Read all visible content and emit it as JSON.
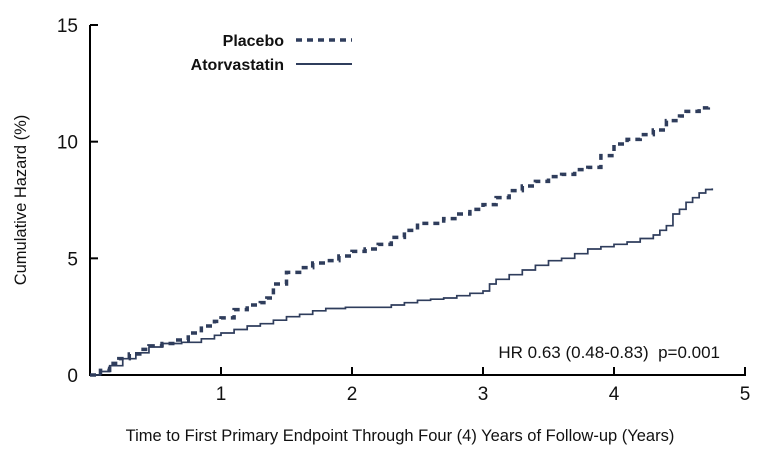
{
  "chart_data": {
    "type": "line",
    "title": "",
    "xlabel": "Time to First Primary Endpoint Through Four (4) Years of Follow-up (Years)",
    "ylabel": "Cumulative Hazard (%)",
    "annotation": "HR 0.63 (0.48-0.83)  p=0.001",
    "xlim": [
      0,
      5
    ],
    "ylim": [
      0,
      15
    ],
    "xticks": [
      1,
      2,
      3,
      4,
      5
    ],
    "yticks": [
      0,
      5,
      10,
      15
    ],
    "grid": false,
    "legend_position": "top-left-inside",
    "axis_color": "#000000",
    "line_interpolation": "step-after",
    "series": [
      {
        "name": "Placebo",
        "style": "dashed",
        "color": "#2f3d5c",
        "width": 3.5,
        "dash": "6,5",
        "points": [
          [
            0,
            0
          ],
          [
            0.08,
            0.2
          ],
          [
            0.15,
            0.5
          ],
          [
            0.22,
            0.7
          ],
          [
            0.3,
            0.9
          ],
          [
            0.38,
            1.1
          ],
          [
            0.45,
            1.25
          ],
          [
            0.55,
            1.35
          ],
          [
            0.65,
            1.5
          ],
          [
            0.75,
            1.8
          ],
          [
            0.85,
            2.1
          ],
          [
            0.95,
            2.3
          ],
          [
            1.0,
            2.45
          ],
          [
            1.1,
            2.8
          ],
          [
            1.2,
            3.0
          ],
          [
            1.3,
            3.1
          ],
          [
            1.35,
            3.3
          ],
          [
            1.4,
            3.9
          ],
          [
            1.5,
            4.4
          ],
          [
            1.6,
            4.6
          ],
          [
            1.7,
            4.8
          ],
          [
            1.8,
            4.9
          ],
          [
            1.9,
            5.1
          ],
          [
            2.0,
            5.3
          ],
          [
            2.1,
            5.4
          ],
          [
            2.2,
            5.6
          ],
          [
            2.3,
            5.9
          ],
          [
            2.4,
            6.2
          ],
          [
            2.5,
            6.5
          ],
          [
            2.6,
            6.5
          ],
          [
            2.7,
            6.7
          ],
          [
            2.8,
            6.9
          ],
          [
            2.9,
            7.1
          ],
          [
            3.0,
            7.3
          ],
          [
            3.1,
            7.6
          ],
          [
            3.2,
            7.9
          ],
          [
            3.3,
            8.1
          ],
          [
            3.4,
            8.3
          ],
          [
            3.5,
            8.5
          ],
          [
            3.6,
            8.6
          ],
          [
            3.7,
            8.8
          ],
          [
            3.8,
            8.9
          ],
          [
            3.9,
            9.4
          ],
          [
            4.0,
            9.9
          ],
          [
            4.1,
            10.1
          ],
          [
            4.2,
            10.3
          ],
          [
            4.3,
            10.5
          ],
          [
            4.4,
            10.9
          ],
          [
            4.5,
            11.1
          ],
          [
            4.55,
            11.3
          ],
          [
            4.65,
            11.45
          ],
          [
            4.72,
            11.5
          ]
        ]
      },
      {
        "name": "Atorvastatin",
        "style": "solid",
        "color": "#2f3d5c",
        "width": 1.7,
        "dash": "",
        "points": [
          [
            0,
            0
          ],
          [
            0.08,
            0.15
          ],
          [
            0.15,
            0.4
          ],
          [
            0.25,
            0.7
          ],
          [
            0.35,
            0.95
          ],
          [
            0.45,
            1.2
          ],
          [
            0.55,
            1.35
          ],
          [
            0.7,
            1.4
          ],
          [
            0.85,
            1.55
          ],
          [
            0.95,
            1.7
          ],
          [
            1.0,
            1.8
          ],
          [
            1.1,
            1.95
          ],
          [
            1.2,
            2.1
          ],
          [
            1.3,
            2.2
          ],
          [
            1.4,
            2.35
          ],
          [
            1.5,
            2.5
          ],
          [
            1.6,
            2.6
          ],
          [
            1.7,
            2.75
          ],
          [
            1.8,
            2.85
          ],
          [
            1.95,
            2.9
          ],
          [
            2.2,
            2.9
          ],
          [
            2.3,
            3.0
          ],
          [
            2.4,
            3.1
          ],
          [
            2.5,
            3.2
          ],
          [
            2.6,
            3.25
          ],
          [
            2.7,
            3.3
          ],
          [
            2.8,
            3.4
          ],
          [
            2.9,
            3.5
          ],
          [
            3.0,
            3.6
          ],
          [
            3.05,
            3.9
          ],
          [
            3.1,
            4.1
          ],
          [
            3.2,
            4.3
          ],
          [
            3.3,
            4.5
          ],
          [
            3.4,
            4.7
          ],
          [
            3.5,
            4.9
          ],
          [
            3.6,
            5.0
          ],
          [
            3.7,
            5.2
          ],
          [
            3.8,
            5.4
          ],
          [
            3.9,
            5.5
          ],
          [
            4.0,
            5.6
          ],
          [
            4.1,
            5.7
          ],
          [
            4.2,
            5.85
          ],
          [
            4.3,
            6.0
          ],
          [
            4.35,
            6.2
          ],
          [
            4.4,
            6.4
          ],
          [
            4.45,
            6.9
          ],
          [
            4.5,
            7.1
          ],
          [
            4.55,
            7.4
          ],
          [
            4.6,
            7.6
          ],
          [
            4.65,
            7.8
          ],
          [
            4.7,
            7.95
          ],
          [
            4.75,
            8.0
          ]
        ]
      }
    ]
  }
}
